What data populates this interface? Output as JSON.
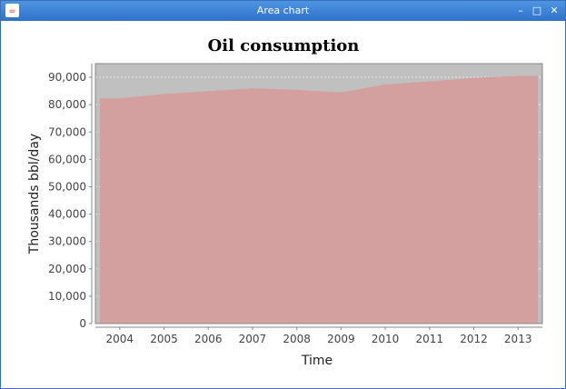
{
  "window": {
    "title": "Area chart",
    "app_icon": "java-icon",
    "controls": {
      "minimize": "–",
      "maximize": "□",
      "close": "✕"
    }
  },
  "chart_data": {
    "type": "area",
    "title": "Oil consumption",
    "xlabel": "Time",
    "ylabel": "Thousands bbl/day",
    "categories": [
      "2004",
      "2005",
      "2006",
      "2007",
      "2008",
      "2009",
      "2010",
      "2011",
      "2012",
      "2013"
    ],
    "series": [
      {
        "values": [
          82300,
          83900,
          84900,
          86000,
          85400,
          84500,
          87400,
          88500,
          89800,
          90500
        ]
      }
    ],
    "x_range": [
      2003.45,
      2013.55
    ],
    "ylim": [
      0,
      95000
    ],
    "yticks": [
      0,
      10000,
      20000,
      30000,
      40000,
      50000,
      60000,
      70000,
      80000,
      90000
    ],
    "ytick_labels": [
      "0",
      "10,000",
      "20,000",
      "30,000",
      "40,000",
      "50,000",
      "60,000",
      "70,000",
      "80,000",
      "90,000"
    ],
    "grid": true,
    "colors": {
      "plot_background": "#c0c0c0",
      "area_fill": "#d49f9f",
      "gridline": "#e8e8e8"
    }
  }
}
